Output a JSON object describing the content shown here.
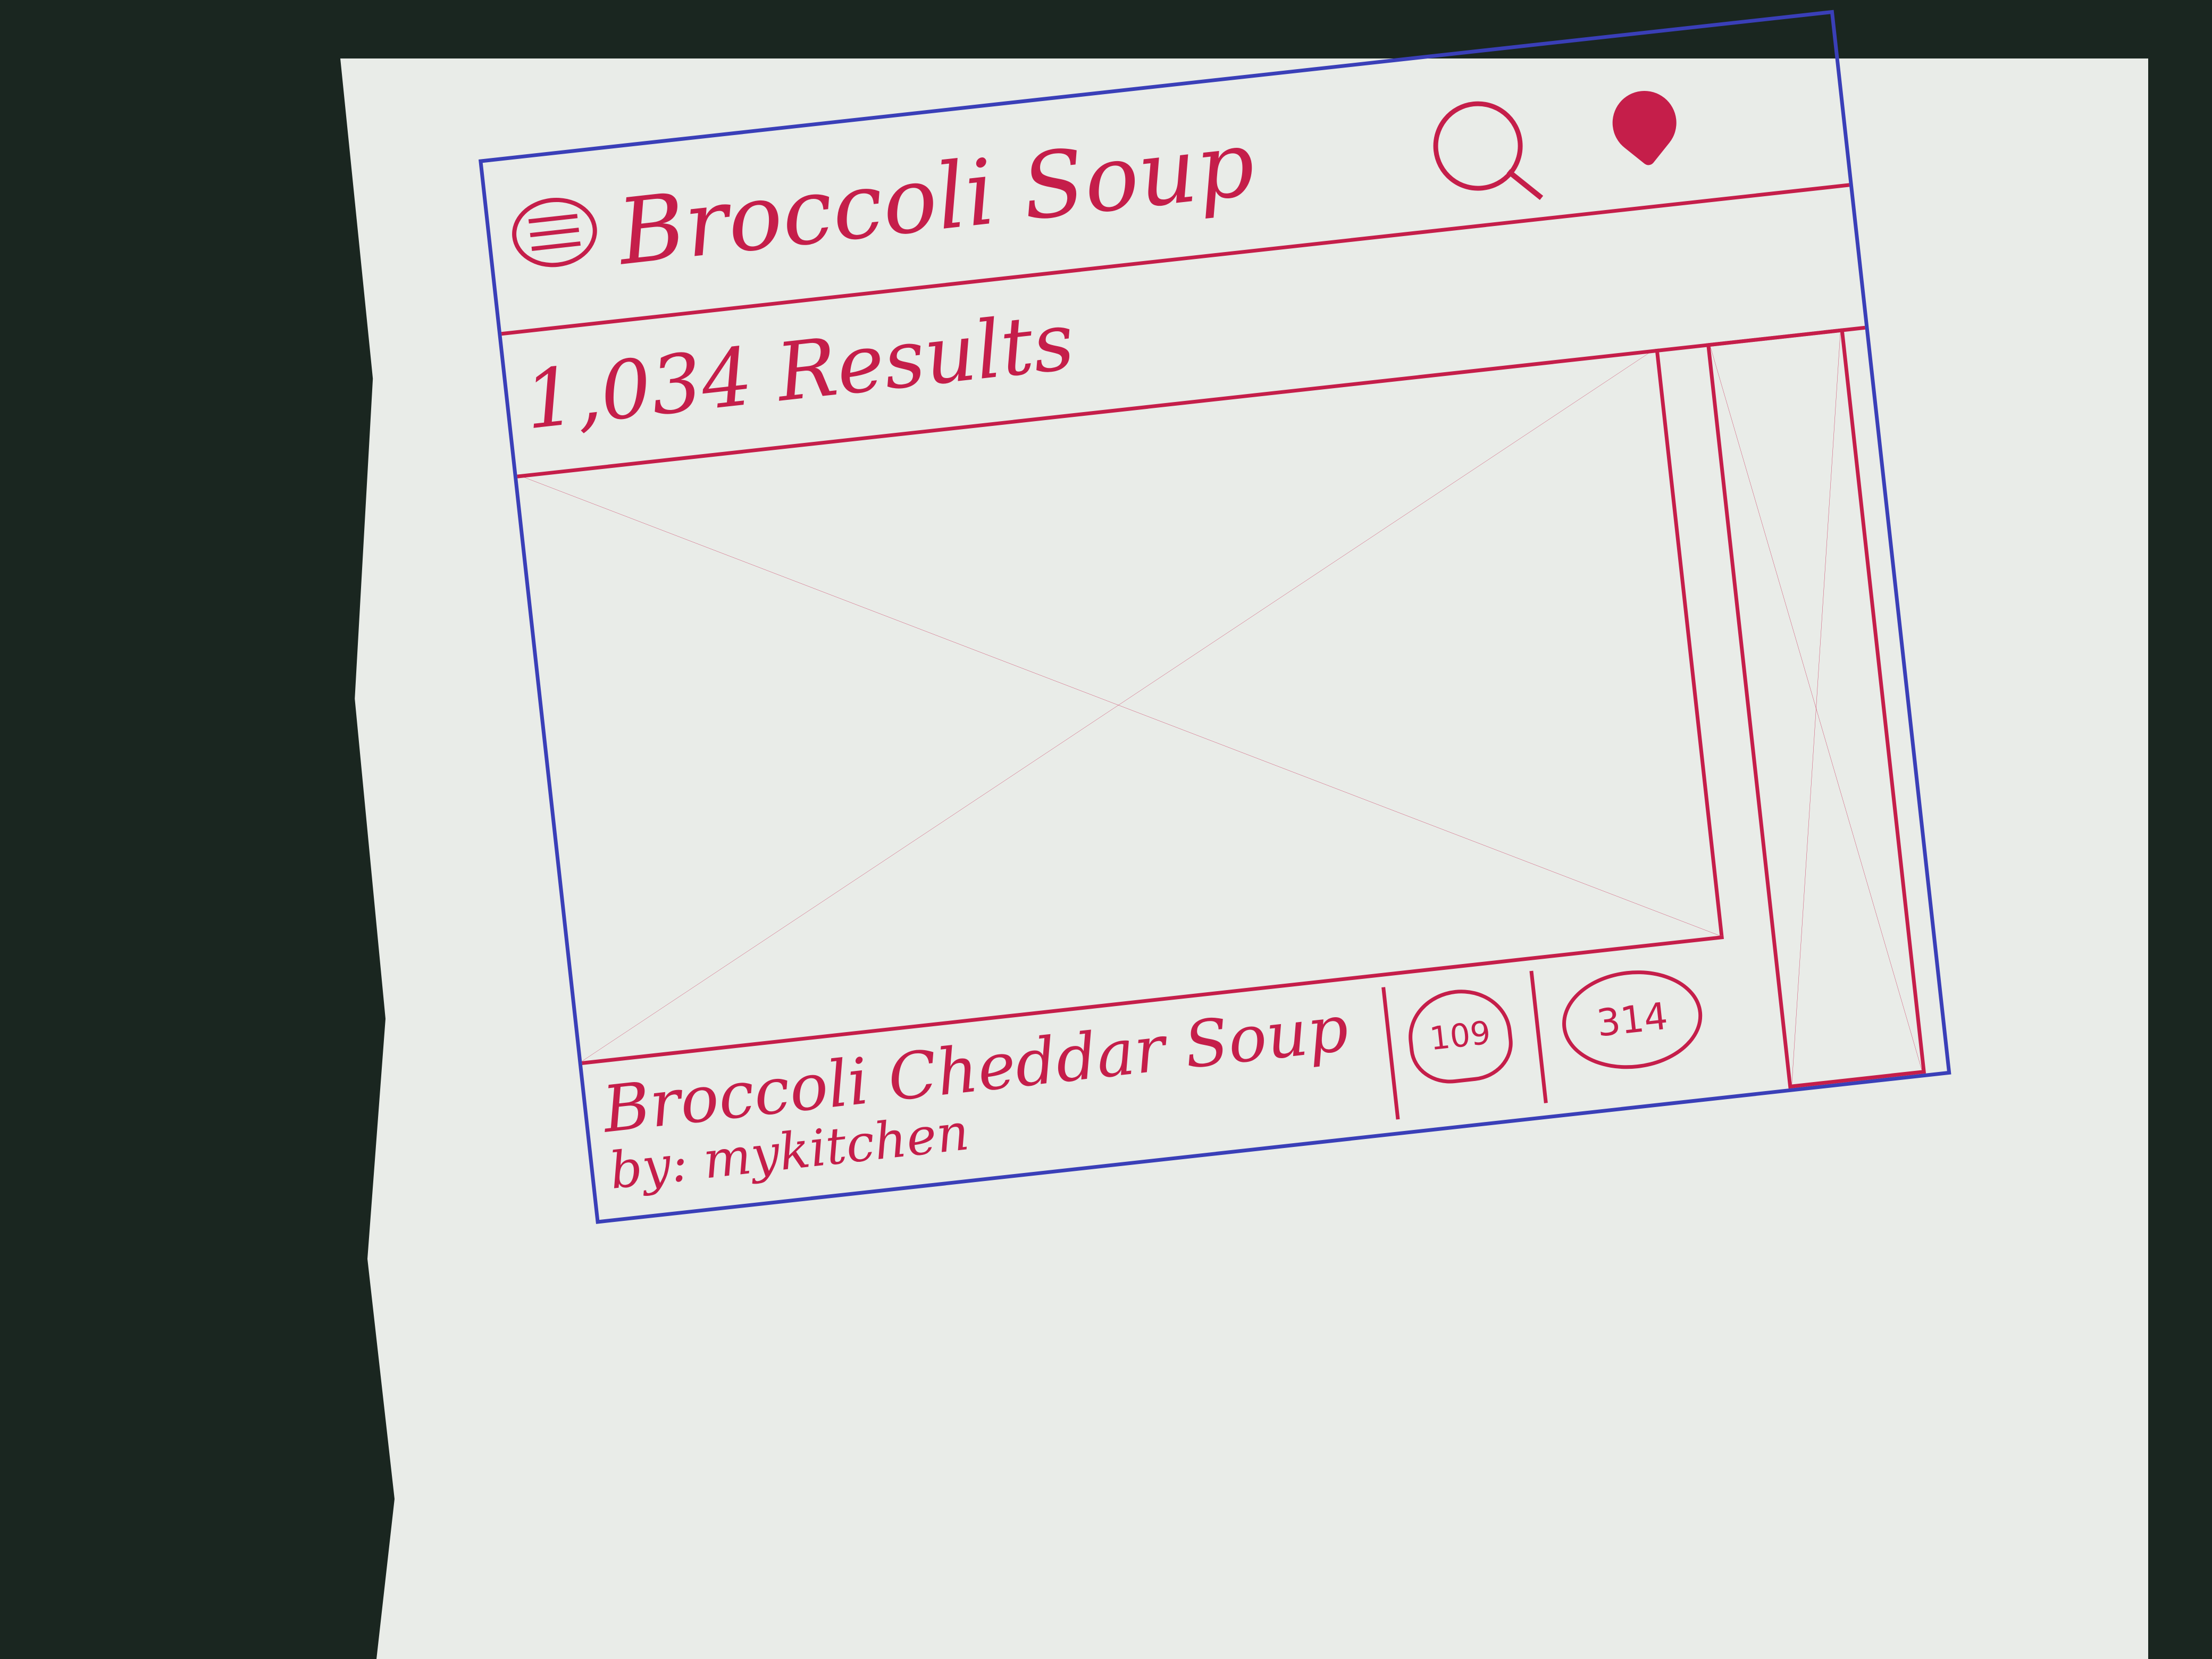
{
  "header": {
    "menu_icon": "menu-icon",
    "search_query": "Broccoli Soup",
    "search_icon": "search-icon",
    "filter_icon": "filter-icon"
  },
  "results": {
    "count_label": "1,034 Results"
  },
  "card": {
    "title": "Broccoli Cheddar Soup",
    "author": "by: mykitchen",
    "likes": "109",
    "count": "314"
  },
  "colors": {
    "frame": "#3a3fb8",
    "sketch": "#c51e4a",
    "paper": "#e9ece8"
  }
}
